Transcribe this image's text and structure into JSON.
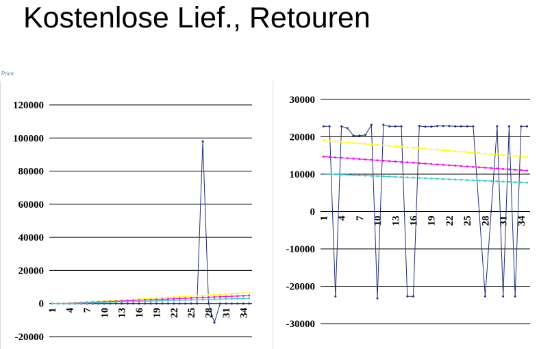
{
  "slide": {
    "title": "Kostenlose Lief., Retouren",
    "corner_label": "Price"
  },
  "chart_data": [
    {
      "type": "line",
      "title": "",
      "ylim": [
        -20000,
        120000
      ],
      "yticks": [
        -20000,
        0,
        20000,
        40000,
        60000,
        80000,
        100000,
        120000
      ],
      "x": [
        1,
        2,
        3,
        4,
        5,
        6,
        7,
        8,
        9,
        10,
        11,
        12,
        13,
        14,
        15,
        16,
        17,
        18,
        19,
        20,
        21,
        22,
        23,
        24,
        25,
        26,
        27,
        28,
        29,
        30,
        31,
        32,
        33,
        34,
        35
      ],
      "xtick_labels": [
        "1",
        "4",
        "7",
        "10",
        "13",
        "16",
        "19",
        "22",
        "25",
        "28",
        "31",
        "34"
      ],
      "grid": true,
      "series": [
        {
          "color": "#1f2a7a",
          "values": [
            0,
            0,
            0,
            0,
            0,
            0,
            0,
            0,
            0,
            0,
            0,
            0,
            0,
            0,
            0,
            0,
            0,
            0,
            0,
            0,
            0,
            0,
            0,
            0,
            0,
            0,
            98000,
            0,
            -11500,
            0,
            0,
            0,
            0,
            0,
            0
          ]
        },
        {
          "color": "#ffff00",
          "values": [
            0,
            0,
            0,
            300,
            500,
            700,
            900,
            1100,
            1300,
            1500,
            1700,
            1900,
            2100,
            2300,
            2500,
            2700,
            2900,
            3100,
            3300,
            3500,
            3700,
            3900,
            4100,
            4300,
            4500,
            4700,
            4900,
            5100,
            5300,
            5500,
            5700,
            5900,
            6100,
            6300,
            6500
          ]
        },
        {
          "color": "#ff00ff",
          "values": [
            0,
            0,
            0,
            200,
            350,
            500,
            650,
            800,
            950,
            1100,
            1250,
            1400,
            1550,
            1700,
            1850,
            2000,
            2150,
            2300,
            2450,
            2600,
            2750,
            2900,
            3050,
            3200,
            3350,
            3500,
            3650,
            3800,
            3950,
            4100,
            4250,
            4400,
            4550,
            4700,
            4850
          ]
        },
        {
          "color": "#33cccc",
          "values": [
            0,
            0,
            0,
            100,
            200,
            300,
            400,
            500,
            600,
            700,
            800,
            900,
            1000,
            1100,
            1200,
            1300,
            1400,
            1500,
            1600,
            1700,
            1800,
            1900,
            2000,
            2100,
            2200,
            2300,
            2400,
            2500,
            2600,
            2700,
            2800,
            2900,
            3000,
            3100,
            3200
          ]
        }
      ]
    },
    {
      "type": "line",
      "title": "",
      "ylim": [
        -30000,
        30000
      ],
      "yticks": [
        -30000,
        -20000,
        -10000,
        0,
        10000,
        20000,
        30000
      ],
      "x": [
        1,
        2,
        3,
        4,
        5,
        6,
        7,
        8,
        9,
        10,
        11,
        12,
        13,
        14,
        15,
        16,
        17,
        18,
        19,
        20,
        21,
        22,
        23,
        24,
        25,
        26,
        27,
        28,
        29,
        30,
        31,
        32,
        33,
        34,
        35
      ],
      "xtick_labels": [
        "1",
        "4",
        "7",
        "10",
        "13",
        "16",
        "19",
        "22",
        "25",
        "28",
        "31",
        "34"
      ],
      "grid": true,
      "series": [
        {
          "color": "#1f2a7a",
          "values": [
            22800,
            22800,
            -22700,
            22800,
            22300,
            20300,
            20300,
            20500,
            23200,
            -23200,
            23200,
            22800,
            22800,
            22800,
            -22700,
            -22700,
            22900,
            22700,
            22700,
            22900,
            22900,
            22900,
            22800,
            22800,
            22800,
            22800,
            0,
            -22700,
            0,
            22800,
            -22700,
            22800,
            -22700,
            22800,
            22800
          ]
        },
        {
          "color": "#ffff00",
          "values": [
            19000,
            18870,
            18740,
            18610,
            18480,
            18350,
            18220,
            18090,
            17960,
            17830,
            17700,
            17570,
            17440,
            17310,
            17180,
            17050,
            16920,
            16790,
            16660,
            16530,
            16400,
            16270,
            16140,
            16010,
            15880,
            15750,
            15620,
            15490,
            15360,
            15230,
            15100,
            14970,
            14840,
            14710,
            14580
          ]
        },
        {
          "color": "#ff00ff",
          "values": [
            14700,
            14590,
            14480,
            14370,
            14260,
            14150,
            14040,
            13930,
            13820,
            13710,
            13600,
            13490,
            13380,
            13270,
            13160,
            13050,
            12940,
            12830,
            12720,
            12610,
            12500,
            12390,
            12280,
            12170,
            12060,
            11950,
            11840,
            11730,
            11620,
            11510,
            11400,
            11290,
            11180,
            11070,
            10960
          ]
        },
        {
          "color": "#33cccc",
          "values": [
            10100,
            10030,
            9960,
            9890,
            9820,
            9750,
            9680,
            9610,
            9540,
            9470,
            9400,
            9330,
            9260,
            9190,
            9120,
            9050,
            8980,
            8910,
            8840,
            8770,
            8700,
            8630,
            8560,
            8490,
            8420,
            8350,
            8280,
            8210,
            8140,
            8070,
            8000,
            7930,
            7860,
            7790,
            7720
          ]
        }
      ]
    }
  ]
}
